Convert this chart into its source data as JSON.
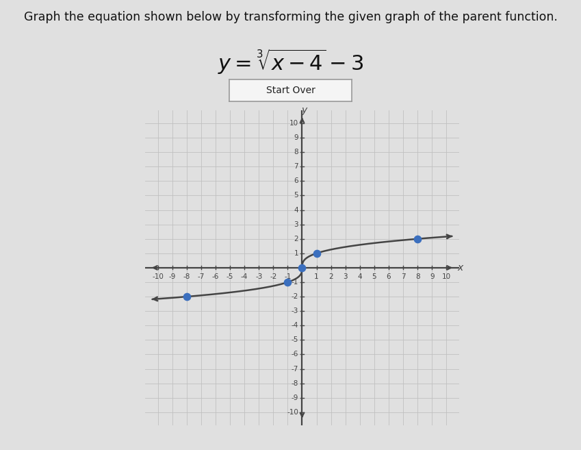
{
  "title_text": "Graph the equation shown below by transforming the given graph of the parent function.",
  "button_text": "Start Over",
  "page_bg": "#e0e0e0",
  "graph_bg": "#dcdcdc",
  "grid_color": "#c0c0c0",
  "grid_linewidth": 0.6,
  "axis_color": "#444444",
  "axis_linewidth": 1.6,
  "curve_color": "#444444",
  "curve_linewidth": 1.8,
  "dot_color": "#3b6fbe",
  "dot_size": 55,
  "xmin": -10,
  "xmax": 10,
  "ymin": -10,
  "ymax": 10,
  "key_points_x": [
    -8,
    -1,
    0,
    1,
    8
  ],
  "key_points_y": [
    -2,
    -1,
    0,
    1,
    2
  ],
  "title_fontsize": 12.5,
  "tick_fontsize": 7.5,
  "axis_label_fontsize": 10
}
